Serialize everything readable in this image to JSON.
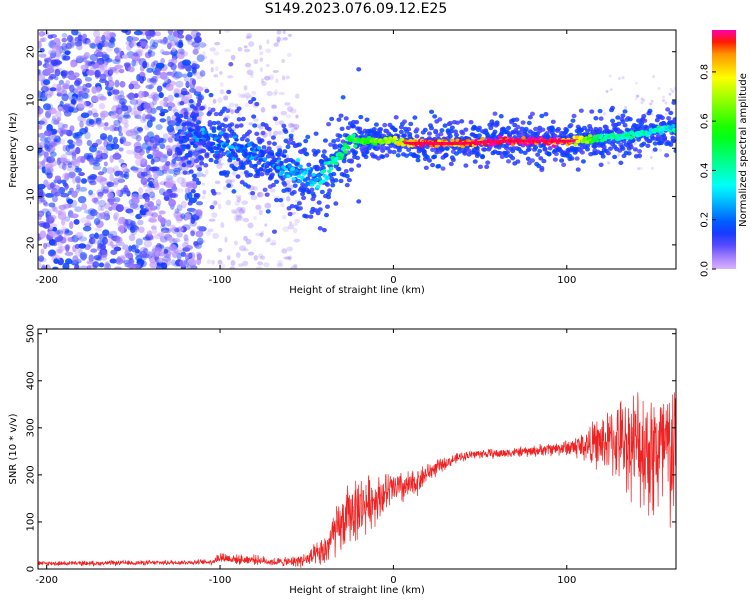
{
  "title": "S149.2023.076.09.12.E25",
  "colors": {
    "snr_line": "#ee2222",
    "axis": "#000000",
    "background": "#ffffff"
  },
  "colorbar": {
    "label": "Normalized spectral amplitude",
    "ticks": [
      "0.0",
      "0.2",
      "0.4",
      "0.6",
      "0.8"
    ],
    "tick_values": [
      0.0,
      0.2,
      0.4,
      0.6,
      0.8
    ],
    "range": [
      0.0,
      0.97
    ]
  },
  "chart_data": [
    {
      "type": "heatmap",
      "title": "",
      "xlabel": "Height of straight line (km)",
      "ylabel": "Frequency (Hz)",
      "xlim": [
        -205,
        163
      ],
      "ylim": [
        -25,
        24.5
      ],
      "x_ticks": [
        -200,
        -100,
        0,
        100
      ],
      "x_tick_labels": [
        "-200",
        "-100",
        "0",
        "100"
      ],
      "y_ticks": [
        -20,
        -10,
        0,
        10,
        20
      ],
      "y_tick_labels": [
        "-20",
        "-10",
        "0",
        "10",
        "20"
      ],
      "ridge": {
        "x": [
          -125,
          -110,
          -100,
          -90,
          -80,
          -70,
          -60,
          -50,
          -45,
          -40,
          -35,
          -30,
          -25,
          -20,
          -10,
          0,
          10,
          20,
          40,
          60,
          80,
          100,
          120,
          140,
          160
        ],
        "freq": [
          3,
          2,
          1,
          0,
          -1.5,
          -3,
          -4.5,
          -6,
          -6.5,
          -5.5,
          -3,
          -1,
          1,
          1.5,
          1.5,
          1.5,
          1,
          1,
          1,
          1.5,
          1.5,
          1.5,
          2,
          3,
          4
        ],
        "amplitude": [
          0.15,
          0.2,
          0.22,
          0.2,
          0.18,
          0.2,
          0.25,
          0.3,
          0.3,
          0.35,
          0.4,
          0.45,
          0.5,
          0.55,
          0.6,
          0.7,
          0.85,
          0.9,
          0.85,
          0.95,
          0.95,
          0.9,
          0.45,
          0.4,
          0.35
        ]
      },
      "noise_region_x": [
        -205,
        -110
      ],
      "sparse_noise_region_x": [
        -110,
        -55
      ],
      "colormap": "gist_rainbow"
    },
    {
      "type": "line",
      "title": "",
      "xlabel": "Height of straight line (km)",
      "ylabel": "SNR (10 * v/v)",
      "xlim": [
        -205,
        163
      ],
      "ylim": [
        0,
        510
      ],
      "x_ticks": [
        -200,
        -100,
        0,
        100
      ],
      "x_tick_labels": [
        "-200",
        "-100",
        "0",
        "100"
      ],
      "y_ticks": [
        0,
        100,
        200,
        300,
        400,
        500
      ],
      "y_tick_labels": [
        "0",
        "100",
        "200",
        "300",
        "400",
        "500"
      ],
      "series": [
        {
          "x": [
            -205,
            -180,
            -150,
            -120,
            -105,
            -100,
            -90,
            -80,
            -70,
            -60,
            -50,
            -40,
            -35,
            -30,
            -25,
            -20,
            -10,
            0,
            10,
            20,
            30,
            40,
            50,
            60,
            70,
            80,
            90,
            100,
            110,
            120,
            130,
            140,
            150,
            160
          ],
          "mean": [
            12,
            12,
            13,
            14,
            15,
            25,
            20,
            20,
            15,
            15,
            20,
            35,
            70,
            90,
            120,
            130,
            150,
            170,
            175,
            205,
            225,
            240,
            245,
            245,
            248,
            250,
            255,
            258,
            262,
            268,
            272,
            265,
            250,
            240
          ],
          "spread": [
            6,
            6,
            6,
            6,
            7,
            15,
            12,
            12,
            10,
            12,
            20,
            40,
            60,
            70,
            80,
            80,
            60,
            45,
            40,
            25,
            15,
            12,
            12,
            12,
            12,
            14,
            16,
            20,
            40,
            70,
            100,
            140,
            180,
            200
          ]
        }
      ]
    }
  ]
}
